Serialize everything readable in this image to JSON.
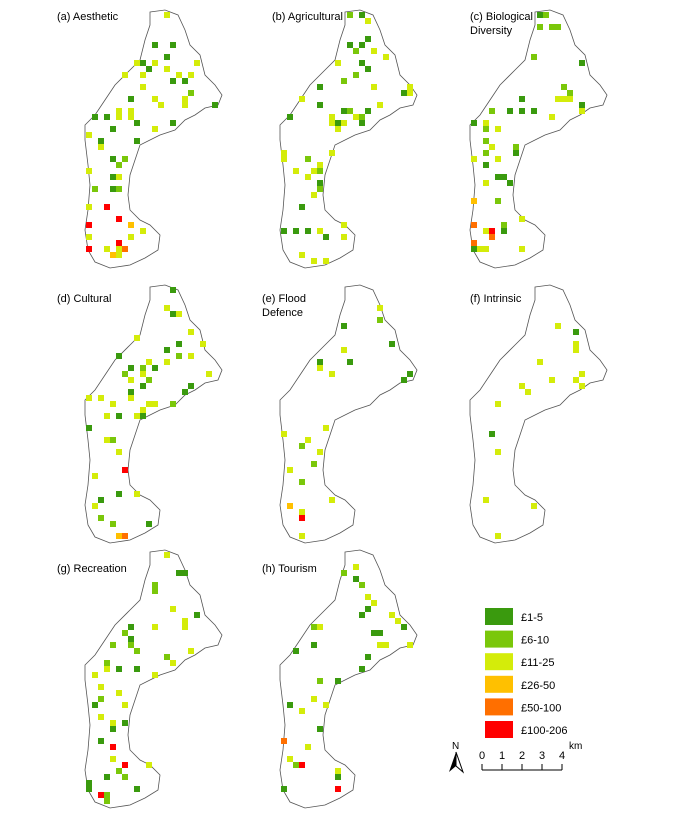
{
  "panels": [
    {
      "title": [
        "(a) Aesthetic"
      ]
    },
    {
      "title": [
        "(b) Agricultural"
      ]
    },
    {
      "title": [
        "(c) Biological",
        "Diversity"
      ]
    },
    {
      "title": [
        "(d) Cultural"
      ]
    },
    {
      "title": [
        "(e) Flood",
        "Defence"
      ]
    },
    {
      "title": [
        "(f) Intrinsic"
      ]
    },
    {
      "title": [
        "(g) Recreation"
      ]
    },
    {
      "title": [
        "(h) Tourism"
      ]
    }
  ],
  "legend": [
    {
      "label": "£1-5",
      "color": "#3a9a0e"
    },
    {
      "label": "£6-10",
      "color": "#7ac70a"
    },
    {
      "label": "£11-25",
      "color": "#d4ec0a"
    },
    {
      "label": "£26-50",
      "color": "#ffc000"
    },
    {
      "label": "£50-100",
      "color": "#ff6f00"
    },
    {
      "label": "£100-206",
      "color": "#ff0000"
    }
  ],
  "north": "N",
  "scale": {
    "labels": [
      "0",
      "1",
      "2",
      "3",
      "4"
    ],
    "unit": "km"
  }
}
